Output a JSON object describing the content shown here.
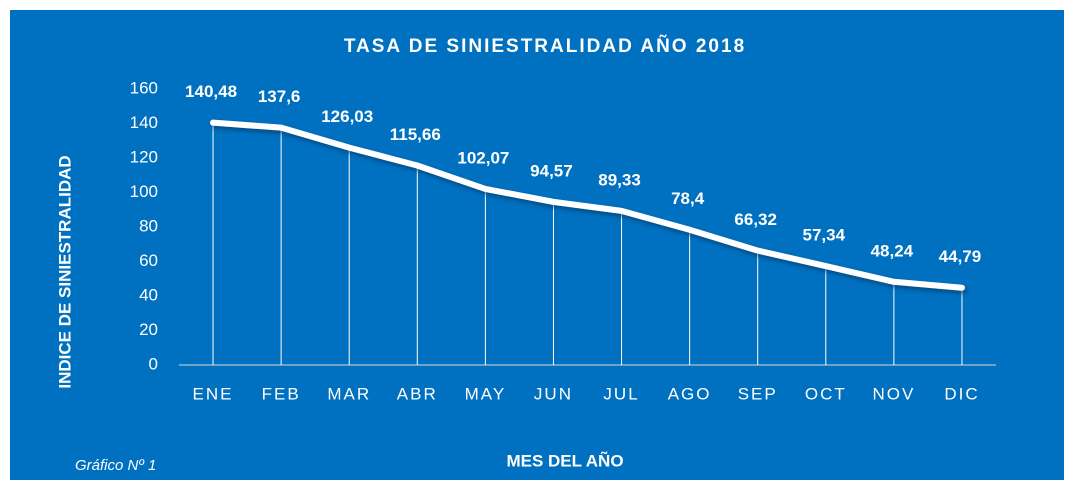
{
  "chart_data": {
    "type": "line",
    "title": "TASA DE SINIESTRALIDAD AÑO 2018",
    "x_label": "MES DEL AÑO",
    "y_label": "INDICE  DE SINIESTRALIDAD",
    "annotation": "Gráfico Nº 1",
    "categories": [
      "ENE",
      "FEB",
      "MAR",
      "ABR",
      "MAY",
      "JUN",
      "JUL",
      "AGO",
      "SEP",
      "OCT",
      "NOV",
      "DIC"
    ],
    "values": [
      140.48,
      137.6,
      126.03,
      115.66,
      102.07,
      94.57,
      89.33,
      78.4,
      66.32,
      57.34,
      48.24,
      44.79
    ],
    "value_labels": [
      "140,48",
      "137,6",
      "126,03",
      "115,66",
      "102,07",
      "94,57",
      "89,33",
      "78,4",
      "66,32",
      "57,34",
      "48,24",
      "44,79"
    ],
    "color": "#ffffff",
    "drop_lines": true,
    "ylim": [
      0,
      160
    ],
    "yticks": [
      0,
      20,
      40,
      60,
      80,
      100,
      120,
      140,
      160
    ]
  }
}
